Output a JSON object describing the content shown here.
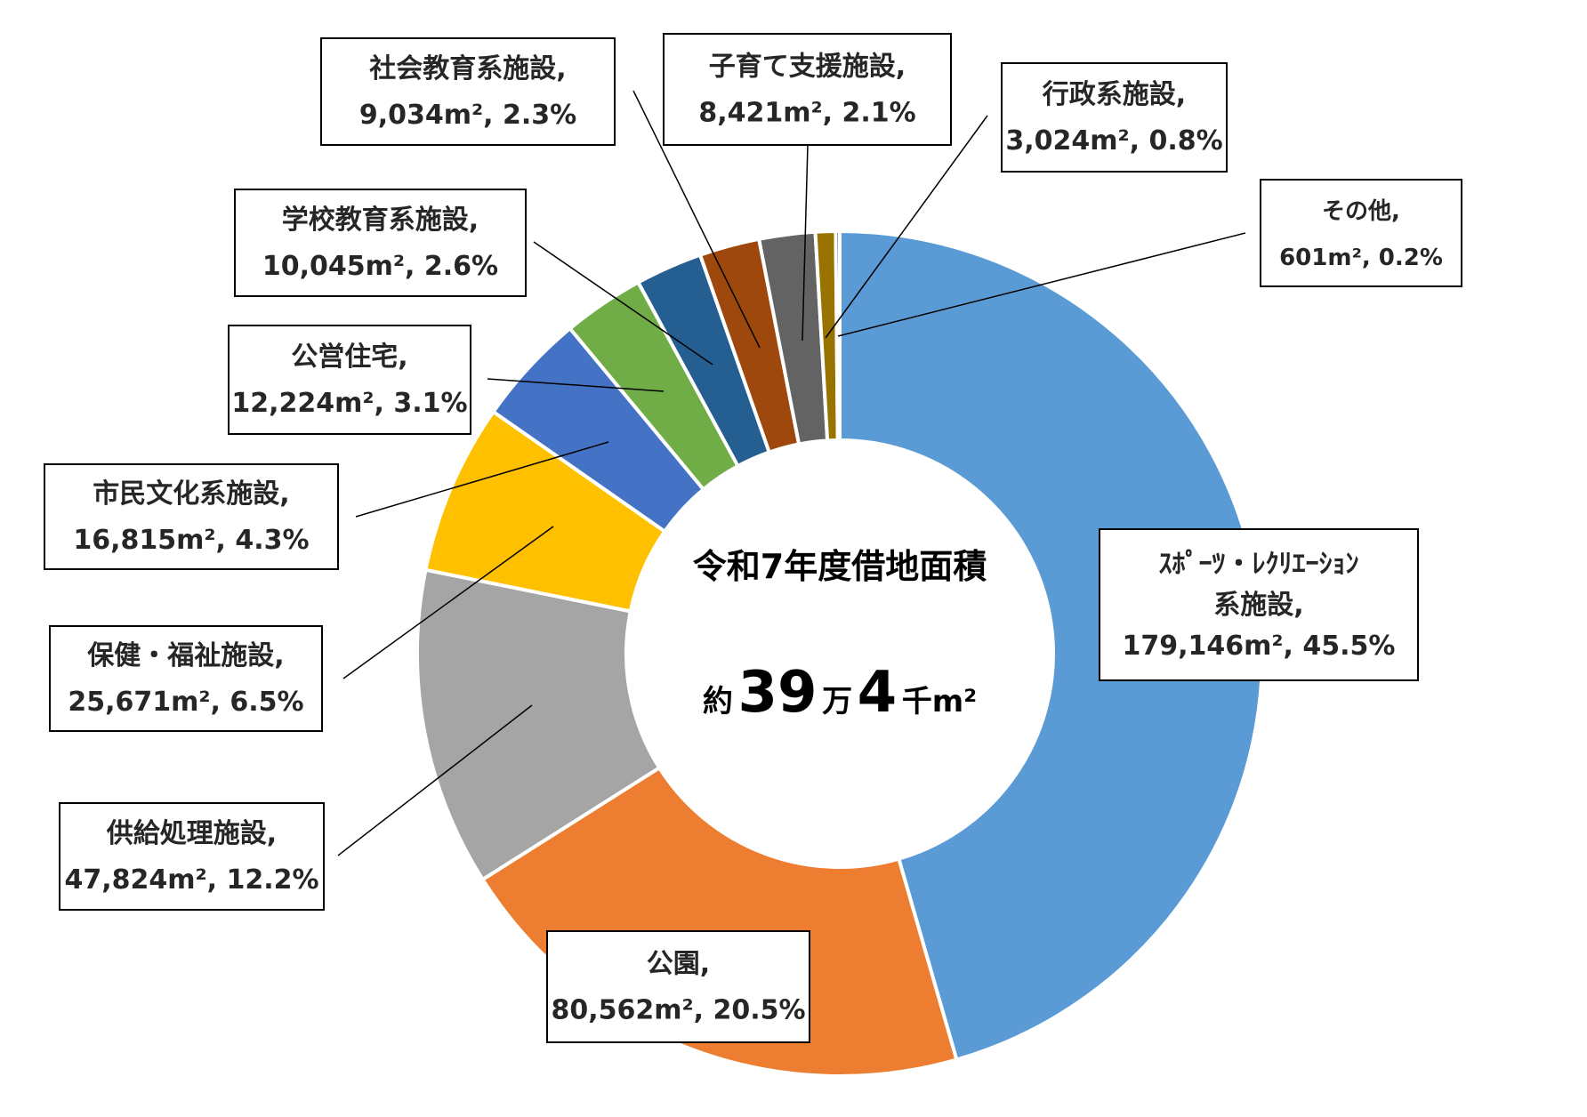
{
  "chart_data": {
    "type": "pie",
    "variant": "doughnut",
    "center": {
      "title": "令和7年度借地面積",
      "total_prefix": "約",
      "total_num1": "39",
      "total_unit1": "万",
      "total_num2": "4",
      "total_unit2": "千m²"
    },
    "slices": [
      {
        "name": "スポーツ・レクリエーション系施設",
        "label_line1": "ｽﾎﾟｰﾂ・ﾚｸﾘｴｰｼｮﾝ",
        "label_line2": "系施設,",
        "label_line3": "179,146m², 45.5%",
        "value": 179146,
        "percent": 45.5,
        "color": "#5B9BD5"
      },
      {
        "name": "公園",
        "label_line1": "公園,",
        "label_line2": "80,562m², 20.5%",
        "value": 80562,
        "percent": 20.5,
        "color": "#ED7D31"
      },
      {
        "name": "供給処理施設",
        "label_line1": "供給処理施設,",
        "label_line2": "47,824m², 12.2%",
        "value": 47824,
        "percent": 12.2,
        "color": "#A5A5A5"
      },
      {
        "name": "保健・福祉施設",
        "label_line1": "保健・福祉施設,",
        "label_line2": "25,671m², 6.5%",
        "value": 25671,
        "percent": 6.5,
        "color": "#FFC000"
      },
      {
        "name": "市民文化系施設",
        "label_line1": "市民文化系施設,",
        "label_line2": "16,815m², 4.3%",
        "value": 16815,
        "percent": 4.3,
        "color": "#4472C4"
      },
      {
        "name": "公営住宅",
        "label_line1": "公営住宅,",
        "label_line2": "12,224m², 3.1%",
        "value": 12224,
        "percent": 3.1,
        "color": "#70AD47"
      },
      {
        "name": "学校教育系施設",
        "label_line1": "学校教育系施設,",
        "label_line2": "10,045m², 2.6%",
        "value": 10045,
        "percent": 2.6,
        "color": "#255E91"
      },
      {
        "name": "社会教育系施設",
        "label_line1": "社会教育系施設,",
        "label_line2": "9,034m², 2.3%",
        "value": 9034,
        "percent": 2.3,
        "color": "#9E480E"
      },
      {
        "name": "子育て支援施設",
        "label_line1": "子育て支援施設,",
        "label_line2": "8,421m², 2.1%",
        "value": 8421,
        "percent": 2.1,
        "color": "#636363"
      },
      {
        "name": "行政系施設",
        "label_line1": "行政系施設,",
        "label_line2": "3,024m², 0.8%",
        "value": 3024,
        "percent": 0.8,
        "color": "#997300"
      },
      {
        "name": "その他",
        "label_line1": "その他,",
        "label_line2": "601m², 0.2%",
        "value": 601,
        "percent": 0.2,
        "color": "#264478"
      }
    ]
  }
}
